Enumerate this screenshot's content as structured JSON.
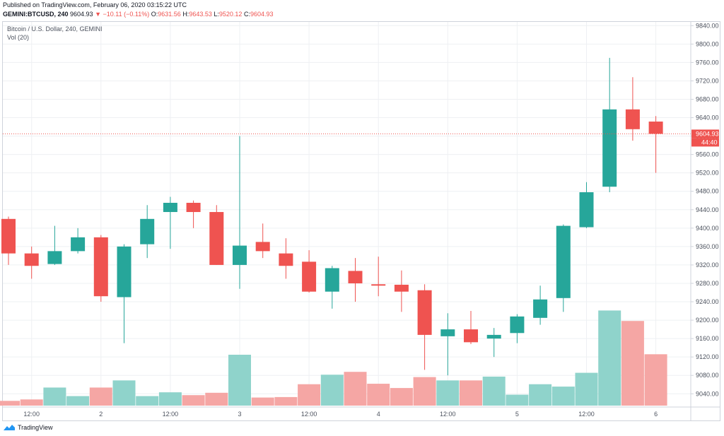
{
  "header": {
    "published": "Published on TradingView.com, February 06, 2020 03:15:22 UTC",
    "symbol": "GEMINI:BTCUSD, 240",
    "last": "9604.93",
    "change": "▼ −10.11 (−0.11%)",
    "o_label": "O:",
    "o_value": "9631.56",
    "h_label": "H:",
    "h_value": "9643.53",
    "l_label": "L:",
    "l_value": "9520.12",
    "c_label": "C:",
    "c_value": "9604.93"
  },
  "legend": {
    "title": "Bitcoin / U.S. Dollar, 240, GEMINI",
    "volume": "Vol (20)"
  },
  "brand": {
    "text": "TradingView"
  },
  "colors": {
    "up": "#26a69a",
    "down": "#ef5350",
    "up_vol": "#8fd3cb",
    "down_vol": "#f5a6a4",
    "grid": "#eef0f3",
    "price_line": "#ef5350"
  },
  "chart_data": {
    "type": "candlestick",
    "title": "Bitcoin / U.S. Dollar, 240, GEMINI",
    "ylim": [
      9000,
      9860
    ],
    "y_ticks": [
      "9840.00",
      "9800.00",
      "9760.00",
      "9720.00",
      "9680.00",
      "9640.00",
      "9600.00",
      "9560.00",
      "9520.00",
      "9480.00",
      "9440.00",
      "9400.00",
      "9360.00",
      "9320.00",
      "9280.00",
      "9240.00",
      "9200.00",
      "9160.00",
      "9120.00",
      "9080.00",
      "9040.00"
    ],
    "x_ticks": [
      {
        "label": "12:00",
        "candle": 1
      },
      {
        "label": "2",
        "candle": 4
      },
      {
        "label": "12:00",
        "candle": 7
      },
      {
        "label": "3",
        "candle": 10
      },
      {
        "label": "12:00",
        "candle": 13
      },
      {
        "label": "4",
        "candle": 16
      },
      {
        "label": "12:00",
        "candle": 19
      },
      {
        "label": "5",
        "candle": 22
      },
      {
        "label": "12:00",
        "candle": 25
      },
      {
        "label": "6",
        "candle": 28
      }
    ],
    "last_price": {
      "value": 9604.93,
      "label": "9604.93",
      "countdown": "44:40"
    },
    "candles": [
      {
        "o": 9420,
        "h": 9425,
        "l": 9320,
        "c": 9345,
        "v": 10
      },
      {
        "o": 9345,
        "h": 9360,
        "l": 9290,
        "c": 9318,
        "v": 13
      },
      {
        "o": 9322,
        "h": 9405,
        "l": 9320,
        "c": 9350,
        "v": 38
      },
      {
        "o": 9350,
        "h": 9400,
        "l": 9345,
        "c": 9380,
        "v": 20
      },
      {
        "o": 9380,
        "h": 9385,
        "l": 9240,
        "c": 9252,
        "v": 38
      },
      {
        "o": 9250,
        "h": 9365,
        "l": 9150,
        "c": 9360,
        "v": 53
      },
      {
        "o": 9365,
        "h": 9450,
        "l": 9335,
        "c": 9420,
        "v": 20
      },
      {
        "o": 9435,
        "h": 9468,
        "l": 9355,
        "c": 9455,
        "v": 28
      },
      {
        "o": 9455,
        "h": 9460,
        "l": 9400,
        "c": 9435,
        "v": 22
      },
      {
        "o": 9435,
        "h": 9450,
        "l": 9320,
        "c": 9320,
        "v": 27
      },
      {
        "o": 9320,
        "h": 9600,
        "l": 9268,
        "c": 9362,
        "v": 107
      },
      {
        "o": 9370,
        "h": 9410,
        "l": 9335,
        "c": 9350,
        "v": 17
      },
      {
        "o": 9345,
        "h": 9378,
        "l": 9290,
        "c": 9318,
        "v": 18
      },
      {
        "o": 9327,
        "h": 9352,
        "l": 9260,
        "c": 9262,
        "v": 45
      },
      {
        "o": 9262,
        "h": 9318,
        "l": 9225,
        "c": 9313,
        "v": 65
      },
      {
        "o": 9307,
        "h": 9335,
        "l": 9240,
        "c": 9280,
        "v": 71
      },
      {
        "o": 9278,
        "h": 9338,
        "l": 9252,
        "c": 9275,
        "v": 46
      },
      {
        "o": 9277,
        "h": 9308,
        "l": 9218,
        "c": 9262,
        "v": 37
      },
      {
        "o": 9265,
        "h": 9278,
        "l": 9092,
        "c": 9168,
        "v": 60
      },
      {
        "o": 9165,
        "h": 9215,
        "l": 9080,
        "c": 9180,
        "v": 53
      },
      {
        "o": 9180,
        "h": 9220,
        "l": 9148,
        "c": 9152,
        "v": 53
      },
      {
        "o": 9160,
        "h": 9183,
        "l": 9120,
        "c": 9168,
        "v": 61
      },
      {
        "o": 9172,
        "h": 9213,
        "l": 9150,
        "c": 9208,
        "v": 23
      },
      {
        "o": 9205,
        "h": 9275,
        "l": 9190,
        "c": 9245,
        "v": 45
      },
      {
        "o": 9248,
        "h": 9408,
        "l": 9218,
        "c": 9405,
        "v": 40
      },
      {
        "o": 9402,
        "h": 9500,
        "l": 9400,
        "c": 9478,
        "v": 69
      },
      {
        "o": 9490,
        "h": 9770,
        "l": 9478,
        "c": 9658,
        "v": 200
      },
      {
        "o": 9658,
        "h": 9728,
        "l": 9590,
        "c": 9615,
        "v": 178
      },
      {
        "o": 9631.56,
        "h": 9643.53,
        "l": 9520.12,
        "c": 9604.93,
        "v": 108
      }
    ]
  }
}
